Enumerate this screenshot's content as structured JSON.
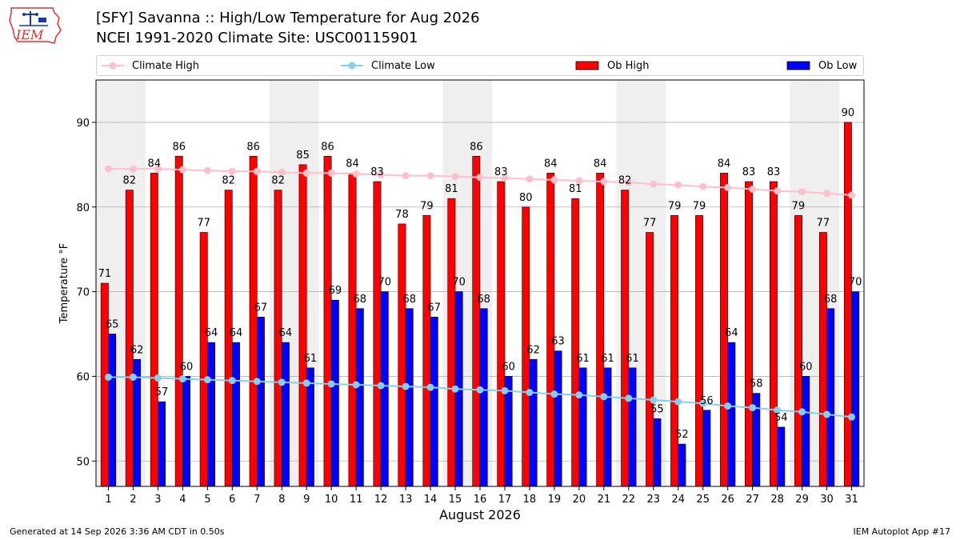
{
  "header": {
    "title": "[SFY] Savanna :: High/Low Temperature for Aug 2026",
    "subtitle": "NCEI 1991-2020 Climate Site: USC00115901",
    "logo_text": "IEM"
  },
  "legend": {
    "climate_high": "Climate High",
    "climate_low": "Climate Low",
    "ob_high": "Ob High",
    "ob_low": "Ob Low"
  },
  "footer": {
    "generated": "Generated at 14 Sep 2026 3:36 AM CDT in 0.50s",
    "app": "IEM Autoplot App #17"
  },
  "colors": {
    "ob_high": "#ff0000",
    "ob_low": "#0000ff",
    "climate_high": "#ffc0cb",
    "climate_low": "#87ceeb",
    "weekend_shade": "#efefef",
    "grid": "#b0b0b0"
  },
  "chart_data": {
    "type": "bar",
    "xlabel": "August 2026",
    "ylabel": "Temperature °F",
    "ylim": [
      47,
      95
    ],
    "yticks": [
      50,
      60,
      70,
      80,
      90
    ],
    "grid": true,
    "legend_position": "top",
    "shaded_days": [
      1,
      2,
      8,
      9,
      15,
      16,
      22,
      23,
      29,
      30
    ],
    "categories": [
      1,
      2,
      3,
      4,
      5,
      6,
      7,
      8,
      9,
      10,
      11,
      12,
      13,
      14,
      15,
      16,
      17,
      18,
      19,
      20,
      21,
      22,
      23,
      24,
      25,
      26,
      27,
      28,
      29,
      30,
      31
    ],
    "series": [
      {
        "name": "Ob High",
        "kind": "bar",
        "labeled": true,
        "values": [
          71,
          82,
          84,
          86,
          77,
          82,
          86,
          82,
          85,
          86,
          84,
          83,
          78,
          79,
          81,
          86,
          83,
          80,
          84,
          81,
          84,
          82,
          77,
          79,
          79,
          84,
          83,
          83,
          79,
          77,
          90
        ]
      },
      {
        "name": "Ob Low",
        "kind": "bar",
        "labeled": true,
        "values": [
          65,
          62,
          57,
          60,
          64,
          64,
          67,
          64,
          61,
          69,
          68,
          70,
          68,
          67,
          70,
          68,
          60,
          62,
          63,
          61,
          61,
          61,
          55,
          52,
          56,
          64,
          58,
          54,
          60,
          68,
          70
        ]
      },
      {
        "name": "Climate High",
        "kind": "line",
        "values": [
          84.5,
          84.5,
          84.5,
          84.4,
          84.3,
          84.2,
          84.2,
          84.1,
          84.0,
          84.0,
          83.9,
          83.8,
          83.7,
          83.7,
          83.6,
          83.5,
          83.4,
          83.3,
          83.2,
          83.1,
          83.0,
          82.9,
          82.7,
          82.6,
          82.4,
          82.3,
          82.1,
          81.9,
          81.8,
          81.6,
          81.4
        ]
      },
      {
        "name": "Climate Low",
        "kind": "line",
        "values": [
          59.9,
          59.9,
          59.8,
          59.7,
          59.6,
          59.5,
          59.4,
          59.3,
          59.2,
          59.1,
          59.0,
          58.9,
          58.8,
          58.7,
          58.5,
          58.4,
          58.3,
          58.1,
          57.9,
          57.8,
          57.6,
          57.4,
          57.2,
          57.0,
          56.8,
          56.5,
          56.3,
          56.0,
          55.8,
          55.5,
          55.2
        ]
      }
    ]
  }
}
